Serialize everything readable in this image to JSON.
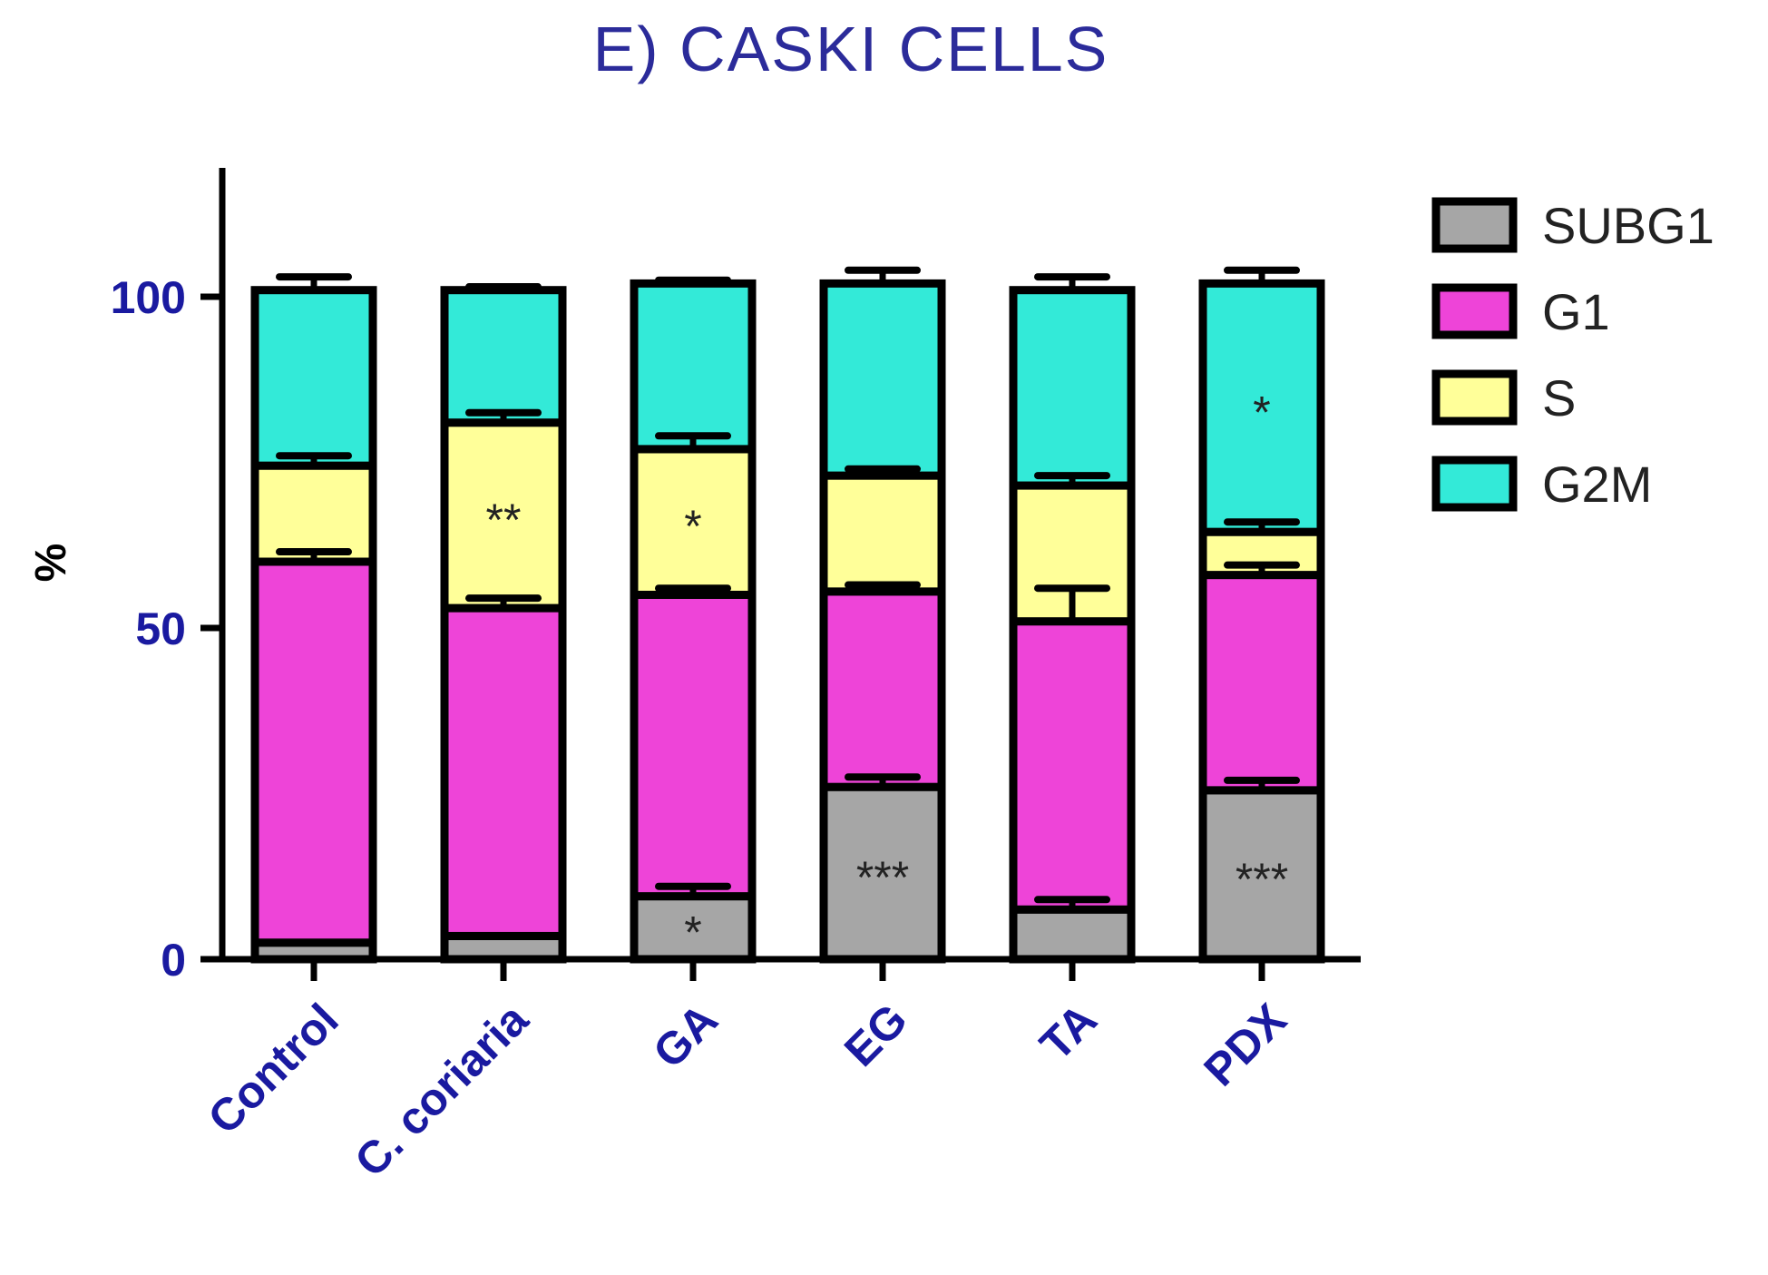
{
  "chart_data": {
    "type": "bar",
    "stacked": true,
    "title": "E) CASKI CELLS",
    "ylabel": "%",
    "xlabel": "",
    "ylim": [
      0,
      120
    ],
    "yticks": [
      0,
      50,
      100
    ],
    "categories": [
      "Control",
      "C. coriaria",
      "GA",
      "EG",
      "TA",
      "PDX"
    ],
    "series": [
      {
        "name": "SUBG1",
        "color": "#a6a6a6",
        "values": [
          2.5,
          3.5,
          9.5,
          26,
          7.5,
          25.5
        ],
        "errors": [
          0,
          0,
          1.5,
          1.5,
          1.5,
          1.5
        ]
      },
      {
        "name": "G1",
        "color": "#ee44d8",
        "values": [
          57.5,
          49.5,
          45.5,
          29.5,
          43.5,
          32.5
        ],
        "errors": [
          1.5,
          1.5,
          1,
          1,
          5,
          1.5
        ]
      },
      {
        "name": "S",
        "color": "#ffff99",
        "values": [
          14.5,
          28,
          22,
          17.5,
          20.5,
          6.5
        ],
        "errors": [
          1.5,
          1.5,
          2,
          1,
          1.5,
          1.5
        ]
      },
      {
        "name": "G2M",
        "color": "#33ead8",
        "values": [
          26.5,
          20,
          25,
          29,
          29.5,
          37.5
        ],
        "errors": [
          2,
          0.5,
          0.5,
          2,
          2,
          2
        ]
      }
    ],
    "annotations": [
      {
        "category": "C. coriaria",
        "series": "S",
        "text": "**"
      },
      {
        "category": "GA",
        "series": "S",
        "text": "*"
      },
      {
        "category": "GA",
        "series": "SUBG1",
        "text": "*"
      },
      {
        "category": "EG",
        "series": "SUBG1",
        "text": "***"
      },
      {
        "category": "PDX",
        "series": "SUBG1",
        "text": "***"
      },
      {
        "category": "PDX",
        "series": "G2M",
        "text": "*"
      }
    ],
    "legend_position": "top-right",
    "grid": false,
    "colors": {
      "title": "#2b2b9a",
      "tick_labels": "#1a1aa0",
      "axis": "#000000"
    }
  }
}
